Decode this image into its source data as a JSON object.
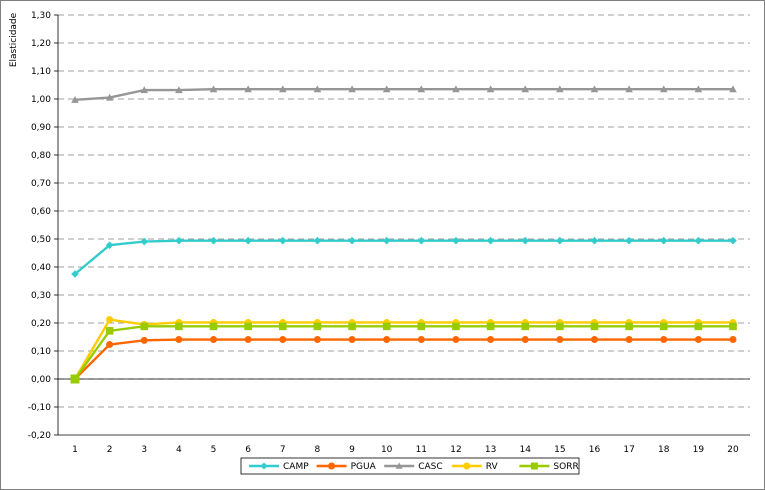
{
  "chart_data": {
    "type": "line",
    "title": "",
    "xlabel": "",
    "ylabel": "Elasticidade",
    "ylim": [
      -0.2,
      1.3
    ],
    "y_step": 0.1,
    "grid": "horizontal-dashed",
    "legend_position": "bottom",
    "x": [
      "1",
      "2",
      "3",
      "4",
      "5",
      "6",
      "7",
      "8",
      "9",
      "10",
      "11",
      "12",
      "13",
      "14",
      "15",
      "16",
      "17",
      "18",
      "19",
      "20"
    ],
    "y_ticks": [
      "-0,20",
      "-0,10",
      "0,00",
      "0,10",
      "0,20",
      "0,30",
      "0,40",
      "0,50",
      "0,60",
      "0,70",
      "0,80",
      "0,90",
      "1,00",
      "1,10",
      "1,20",
      "1,30"
    ],
    "series": [
      {
        "name": "CAMP",
        "color": "#33CCCC",
        "marker": "diamond",
        "values": [
          0.375,
          0.478,
          0.491,
          0.494,
          0.494,
          0.494,
          0.494,
          0.494,
          0.494,
          0.494,
          0.494,
          0.494,
          0.494,
          0.494,
          0.494,
          0.494,
          0.494,
          0.494,
          0.494,
          0.494
        ]
      },
      {
        "name": "PGUA",
        "color": "#FF6600",
        "marker": "circle",
        "values": [
          0.0,
          0.123,
          0.138,
          0.141,
          0.141,
          0.141,
          0.141,
          0.141,
          0.141,
          0.141,
          0.141,
          0.141,
          0.141,
          0.141,
          0.141,
          0.141,
          0.141,
          0.141,
          0.141,
          0.141
        ]
      },
      {
        "name": "CASC",
        "color": "#969696",
        "marker": "triangle",
        "values": [
          0.997,
          1.005,
          1.032,
          1.032,
          1.035,
          1.035,
          1.035,
          1.035,
          1.035,
          1.035,
          1.035,
          1.035,
          1.035,
          1.035,
          1.035,
          1.035,
          1.035,
          1.035,
          1.035,
          1.035
        ]
      },
      {
        "name": "RV",
        "color": "#FFCC00",
        "marker": "circle",
        "values": [
          0.0,
          0.212,
          0.195,
          0.202,
          0.202,
          0.202,
          0.202,
          0.202,
          0.202,
          0.202,
          0.202,
          0.202,
          0.202,
          0.202,
          0.202,
          0.202,
          0.202,
          0.202,
          0.202,
          0.202
        ]
      },
      {
        "name": "SORR",
        "color": "#99CC00",
        "marker": "square",
        "values": [
          0.0,
          0.172,
          0.188,
          0.188,
          0.188,
          0.188,
          0.188,
          0.188,
          0.188,
          0.188,
          0.188,
          0.188,
          0.188,
          0.188,
          0.188,
          0.188,
          0.188,
          0.188,
          0.188,
          0.188
        ]
      }
    ]
  }
}
